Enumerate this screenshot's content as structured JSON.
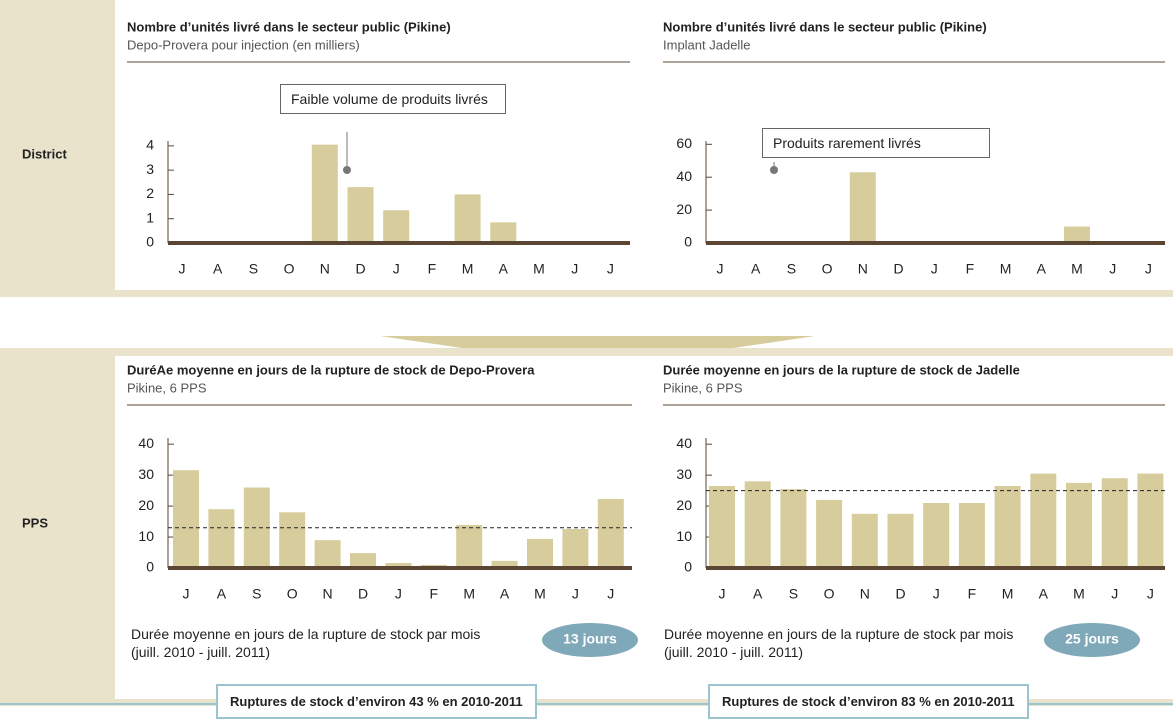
{
  "row_labels": [
    "District",
    "PPS"
  ],
  "chart_data": [
    {
      "type": "bar",
      "title": "Nombre d’unités livré dans le secteur public (Pikine)",
      "subtitle": "Depo-Provera pour injection (en milliers)",
      "categories": [
        "J",
        "A",
        "S",
        "O",
        "N",
        "D",
        "J",
        "F",
        "M",
        "A",
        "M",
        "J",
        "J"
      ],
      "values": [
        0,
        0,
        0,
        0,
        4.05,
        2.3,
        1.35,
        0,
        2.0,
        0.85,
        0,
        0,
        0
      ],
      "color": "#d6cc9c",
      "ylim": [
        0,
        4.2
      ],
      "yticks": [
        0,
        1,
        2,
        3,
        4
      ],
      "annotation": "Faible volume de produits livrés"
    },
    {
      "type": "bar",
      "title": "Nombre d’unités livré dans le secteur public (Pikine)",
      "subtitle": "Implant Jadelle",
      "categories": [
        "J",
        "A",
        "S",
        "O",
        "N",
        "D",
        "J",
        "F",
        "M",
        "A",
        "M",
        "J",
        "J"
      ],
      "values": [
        0,
        0,
        0,
        0,
        43,
        0,
        0,
        0,
        0,
        0,
        10,
        0,
        0
      ],
      "color": "#d6cc9c",
      "ylim": [
        0,
        62
      ],
      "yticks": [
        0,
        20,
        40,
        60
      ],
      "annotation": "Produits rarement livrés"
    },
    {
      "type": "bar",
      "title": "DuréAe moyenne en jours de la rupture de stock de Depo-Provera",
      "subtitle": "Pikine, 6 PPS",
      "categories": [
        "J",
        "A",
        "S",
        "O",
        "N",
        "D",
        "J",
        "F",
        "M",
        "A",
        "M",
        "J",
        "J"
      ],
      "values": [
        31.6,
        19,
        26,
        18,
        9,
        4.8,
        1.6,
        1,
        13.9,
        2.3,
        9.4,
        12.6,
        22.3
      ],
      "color": "#d6cc9c",
      "ylim": [
        0,
        42
      ],
      "yticks": [
        0,
        10,
        20,
        30,
        40
      ],
      "average": 13,
      "average_label": "13 jours",
      "note": "Durée moyenne en jours de la rupture de stock par mois (juill. 2010 - juill. 2011)",
      "footer": "Ruptures de stock d’environ 43 % en 2010-2011"
    },
    {
      "type": "bar",
      "title": "Durée moyenne en jours de la rupture de stock de Jadelle",
      "subtitle": "Pikine, 6 PPS",
      "categories": [
        "J",
        "A",
        "S",
        "O",
        "N",
        "D",
        "J",
        "F",
        "M",
        "A",
        "M",
        "J",
        "J"
      ],
      "values": [
        26.5,
        28,
        25.5,
        22,
        17.5,
        17.5,
        21,
        21,
        26.5,
        30.5,
        27.5,
        29,
        30.5
      ],
      "color": "#d6cc9c",
      "ylim": [
        0,
        42
      ],
      "yticks": [
        0,
        10,
        20,
        30,
        40
      ],
      "average": 25,
      "average_label": "25 jours",
      "note": "Durée moyenne en jours de la rupture de stock par mois (juill. 2010 - juill. 2011)",
      "footer": "Ruptures de stock d’environ 83 % en 2010-2011"
    }
  ]
}
